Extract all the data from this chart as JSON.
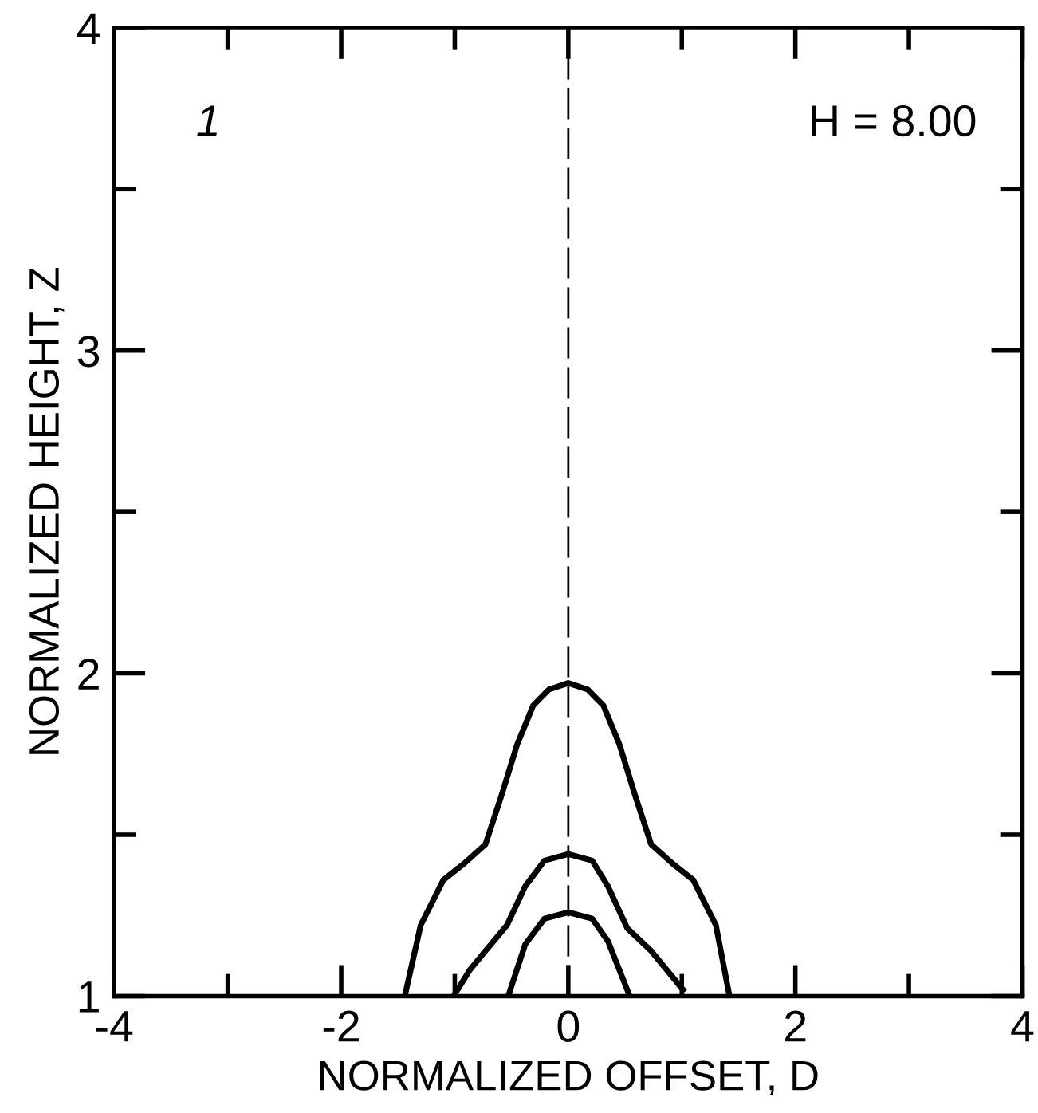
{
  "chart_data": {
    "type": "line",
    "xlabel": "NORMALIZED OFFSET, D",
    "ylabel": "NORMALIZED HEIGHT, Z",
    "annotations": [
      "1",
      "H = 8.00"
    ],
    "xlim": [
      -4,
      4
    ],
    "ylim": [
      1,
      4
    ],
    "xticks": [
      -4,
      {
        "value": -3,
        "label": null
      },
      -2,
      {
        "value": -1,
        "label": null
      },
      0,
      {
        "value": 1,
        "label": null
      },
      2,
      {
        "value": 3,
        "label": null
      },
      4
    ],
    "yticks": [
      1,
      {
        "value": 1.5,
        "label": null
      },
      2,
      {
        "value": 2.5,
        "label": null
      },
      3,
      {
        "value": 3.5,
        "label": null
      },
      4
    ],
    "grid": false,
    "legend": false,
    "marker": "none",
    "line_style": "solid",
    "ref_lines": [
      {
        "axis": "x",
        "value": 0,
        "label": null,
        "color": "#000000",
        "line_style": "dashed"
      }
    ],
    "series": [
      {
        "color": "#000000",
        "x": [
          -1.44,
          -1.3,
          -1.1,
          -0.92,
          -0.73,
          -0.59,
          -0.45,
          -0.31,
          -0.17,
          0,
          0.17,
          0.31,
          0.45,
          0.59,
          0.73,
          0.92,
          1.1,
          1.3,
          1.42
        ],
        "values": [
          1,
          1.22,
          1.36,
          1.41,
          1.47,
          1.62,
          1.78,
          1.9,
          1.95,
          1.97,
          1.95,
          1.9,
          1.78,
          1.62,
          1.47,
          1.41,
          1.36,
          1.22,
          1
        ]
      },
      {
        "color": "#000000",
        "x": [
          -1.01,
          -0.87,
          -0.73,
          -0.54,
          -0.38,
          -0.21,
          0,
          0.21,
          0.35,
          0.52,
          0.73,
          1.01
        ],
        "values": [
          1,
          1.08,
          1.14,
          1.22,
          1.34,
          1.42,
          1.44,
          1.42,
          1.34,
          1.21,
          1.14,
          1.02
        ]
      },
      {
        "color": "#000000",
        "x": [
          -0.52,
          -0.38,
          -0.21,
          0,
          0.21,
          0.35,
          0.53
        ],
        "values": [
          1.01,
          1.16,
          1.24,
          1.26,
          1.24,
          1.17,
          1.01
        ]
      }
    ]
  }
}
